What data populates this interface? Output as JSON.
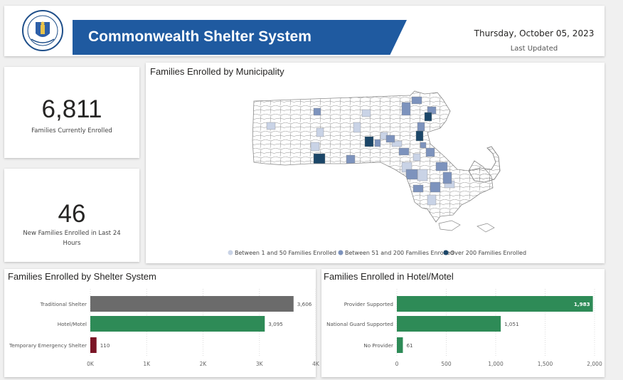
{
  "header": {
    "title": "Commonwealth Shelter System",
    "date": "Thursday, October 05, 2023",
    "last_updated_label": "Last Updated"
  },
  "kpis": [
    {
      "value": "6,811",
      "label": "Families Currently Enrolled"
    },
    {
      "value": "46",
      "label": "New Families Enrolled in Last 24 Hours"
    }
  ],
  "map": {
    "title": "Families Enrolled by Municipality",
    "legend": [
      {
        "label": "Between 1 and 50 Families Enrolled",
        "color": "#c9d3e6"
      },
      {
        "label": "Between 51 and 200 Families Enrolled",
        "color": "#7d93bd"
      },
      {
        "label": "Over 200 Families Enrolled",
        "color": "#1b4668"
      }
    ]
  },
  "chart_data": [
    {
      "type": "bar",
      "orientation": "horizontal",
      "title": "Families Enrolled by Shelter System",
      "categories": [
        "Traditional Shelter",
        "Hotel/Motel",
        "Temporary Emergency Shelter"
      ],
      "values": [
        3606,
        3095,
        110
      ],
      "value_labels": [
        "3,606",
        "3,095",
        "110"
      ],
      "colors": [
        "#6b6b6b",
        "#2e8b57",
        "#7a1425"
      ],
      "xlim": [
        0,
        4000
      ],
      "ticks": [
        0,
        1000,
        2000,
        3000,
        4000
      ],
      "tick_labels": [
        "0K",
        "1K",
        "2K",
        "3K",
        "4K"
      ],
      "grid": true
    },
    {
      "type": "bar",
      "orientation": "horizontal",
      "title": "Families Enrolled in Hotel/Motel",
      "categories": [
        "Provider Supported",
        "National Guard Supported",
        "No Provider"
      ],
      "values": [
        1983,
        1051,
        61
      ],
      "value_labels": [
        "1,983",
        "1,051",
        "61"
      ],
      "colors": [
        "#2e8b57",
        "#2e8b57",
        "#2e8b57"
      ],
      "xlim": [
        0,
        2000
      ],
      "ticks": [
        0,
        500,
        1000,
        1500,
        2000
      ],
      "tick_labels": [
        "0",
        "500",
        "1,000",
        "1,500",
        "2,000"
      ],
      "grid": true
    }
  ]
}
